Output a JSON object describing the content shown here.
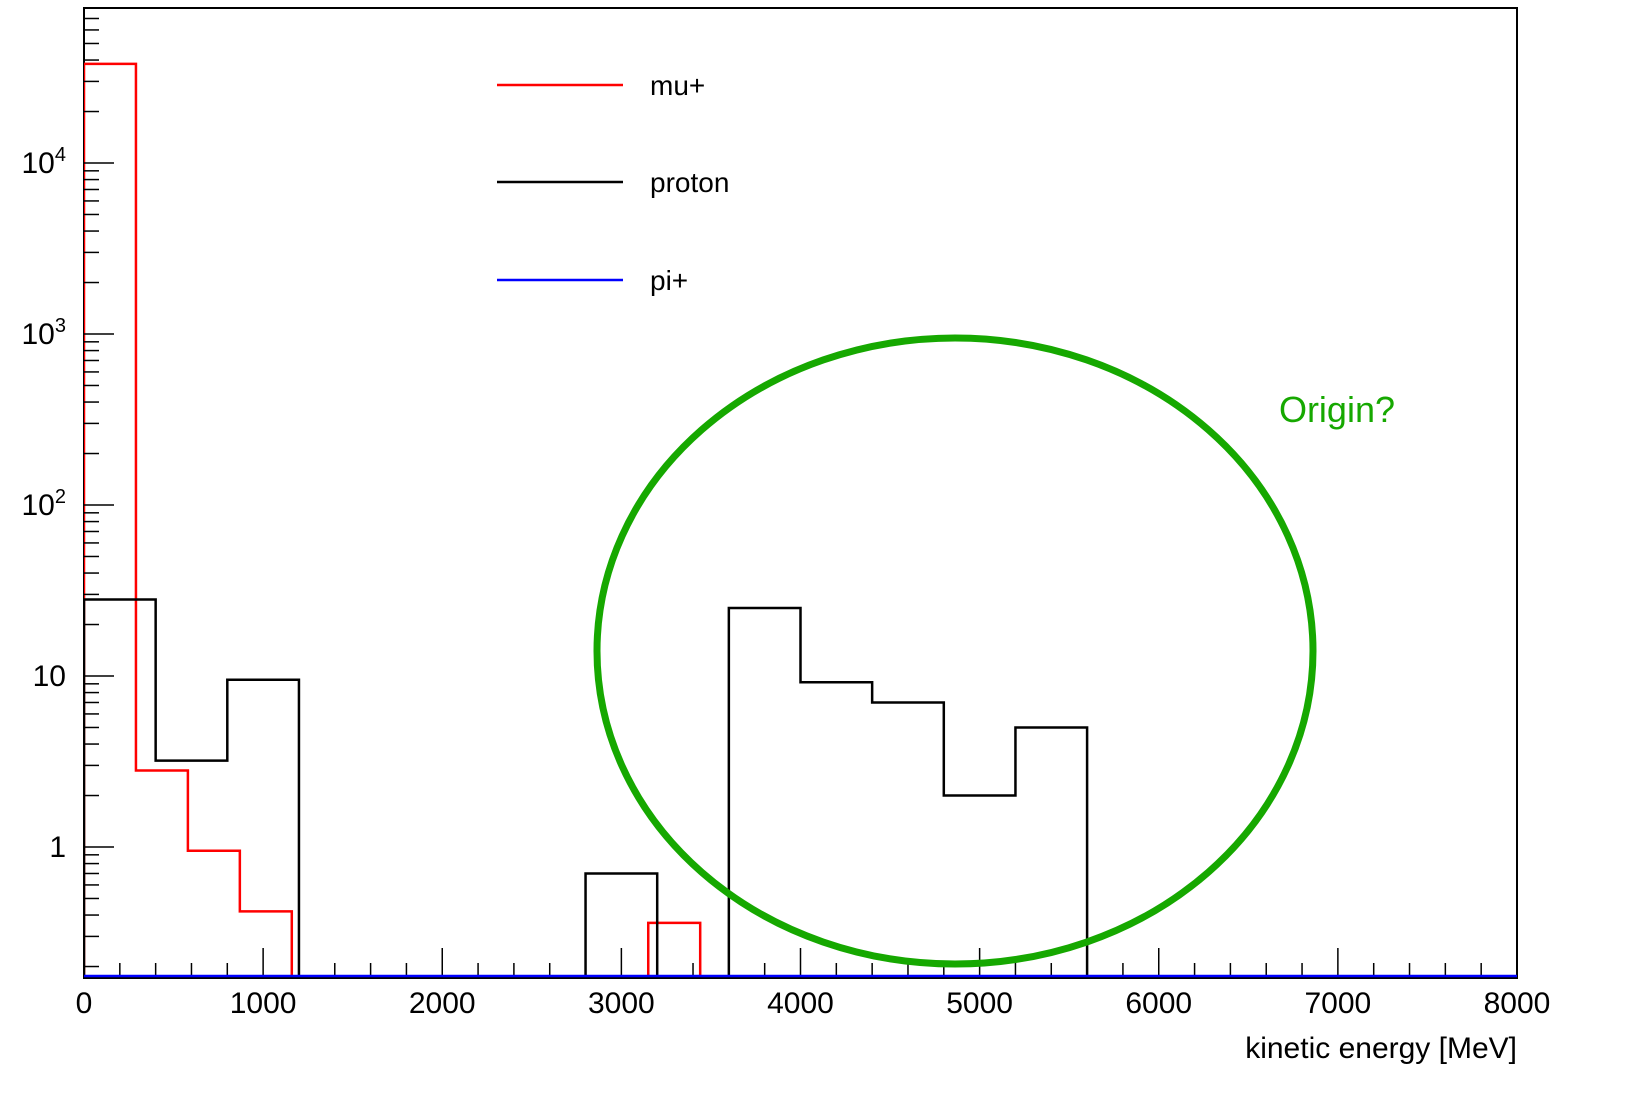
{
  "chart_data": {
    "type": "histogram",
    "xlabel": "kinetic energy [MeV]",
    "ylabel": "",
    "xlim": [
      0,
      8000
    ],
    "ylim": [
      0.2,
      70000
    ],
    "yscale": "log",
    "grid": false,
    "legend_position": "top-center",
    "x_tick_labels": [
      "0",
      "1000",
      "2000",
      "3000",
      "4000",
      "5000",
      "6000",
      "7000",
      "8000"
    ],
    "y_tick_labels": [
      {
        "value": 1,
        "base": "1",
        "exp": ""
      },
      {
        "value": 10,
        "base": "10",
        "exp": ""
      },
      {
        "value": 100,
        "base": "10",
        "exp": "2"
      },
      {
        "value": 1000,
        "base": "10",
        "exp": "3"
      },
      {
        "value": 10000,
        "base": "10",
        "exp": "4"
      }
    ],
    "series": [
      {
        "name": "mu+",
        "color": "#ff0000",
        "bins": [
          {
            "x0": 0,
            "x1": 290,
            "y": 38000
          },
          {
            "x0": 290,
            "x1": 580,
            "y": 2.8
          },
          {
            "x0": 580,
            "x1": 870,
            "y": 0.95
          },
          {
            "x0": 870,
            "x1": 1160,
            "y": 0.42
          },
          {
            "x0": 3150,
            "x1": 3440,
            "y": 0.36
          }
        ]
      },
      {
        "name": "proton",
        "color": "#000000",
        "bins": [
          {
            "x0": 0,
            "x1": 400,
            "y": 28
          },
          {
            "x0": 400,
            "x1": 800,
            "y": 3.2
          },
          {
            "x0": 800,
            "x1": 1200,
            "y": 9.5
          },
          {
            "x0": 2800,
            "x1": 3200,
            "y": 0.7
          },
          {
            "x0": 3600,
            "x1": 4000,
            "y": 25
          },
          {
            "x0": 4000,
            "x1": 4400,
            "y": 9.2
          },
          {
            "x0": 4400,
            "x1": 4800,
            "y": 7.0
          },
          {
            "x0": 4800,
            "x1": 5200,
            "y": 2.0
          },
          {
            "x0": 5200,
            "x1": 5600,
            "y": 5.0
          }
        ]
      },
      {
        "name": "pi+",
        "color": "#0000ff",
        "bins": []
      }
    ],
    "annotations": [
      {
        "text": "Origin?",
        "color": "#16a800",
        "shape": "ellipse",
        "encloses_x_range": [
          2850,
          6050
        ]
      }
    ]
  }
}
